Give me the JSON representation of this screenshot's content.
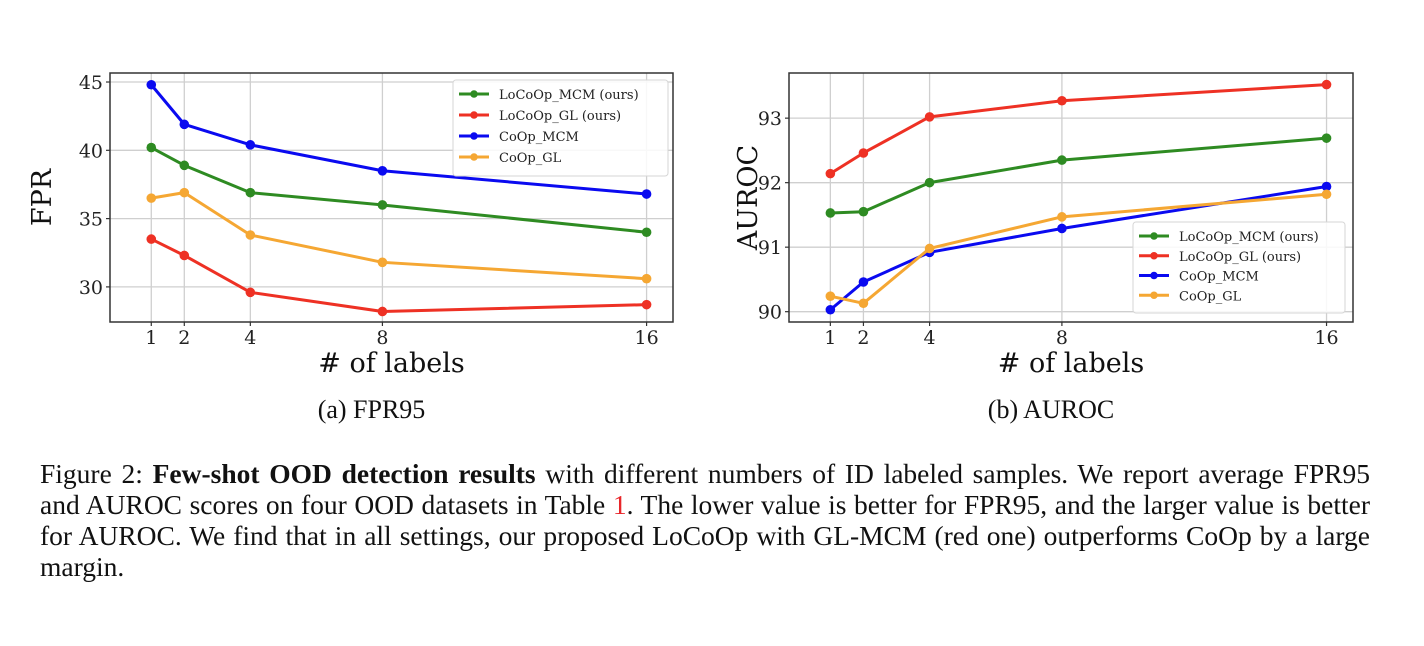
{
  "chart_data": [
    {
      "type": "line",
      "subcaption": "(a) FPR95",
      "xlabel": "# of labels",
      "ylabel": "FPR",
      "x": [
        1,
        2,
        4,
        8,
        16
      ],
      "xticks": [
        1,
        2,
        4,
        8,
        16
      ],
      "yticks": [
        30,
        35,
        40,
        45
      ],
      "xlim": [
        -0.25,
        16.8
      ],
      "ylim": [
        27.43,
        45.66
      ],
      "grid": true,
      "legend_position": "top-right",
      "series": [
        {
          "name": "LoCoOp_MCM (ours)",
          "color": "#2e8b22",
          "values": [
            40.2,
            38.9,
            36.9,
            36.0,
            34.0
          ]
        },
        {
          "name": "LoCoOp_GL (ours)",
          "color": "#ee3124",
          "values": [
            33.5,
            32.3,
            29.6,
            28.2,
            28.7
          ]
        },
        {
          "name": "CoOp_MCM",
          "color": "#0a0af0",
          "values": [
            44.8,
            41.9,
            40.4,
            38.5,
            36.8
          ]
        },
        {
          "name": "CoOp_GL",
          "color": "#f5a733",
          "values": [
            36.5,
            36.9,
            33.8,
            31.8,
            30.6
          ]
        }
      ]
    },
    {
      "type": "line",
      "subcaption": "(b) AUROC",
      "xlabel": "# of labels",
      "ylabel": "AUROC",
      "x": [
        1,
        2,
        4,
        8,
        16
      ],
      "xticks": [
        1,
        2,
        4,
        8,
        16
      ],
      "yticks": [
        90,
        91,
        92,
        93
      ],
      "xlim": [
        -0.25,
        16.8
      ],
      "ylim": [
        89.84,
        93.7
      ],
      "grid": true,
      "legend_position": "lower-right",
      "series": [
        {
          "name": "LoCoOp_MCM (ours)",
          "color": "#2e8b22",
          "values": [
            91.53,
            91.55,
            92.0,
            92.35,
            92.69
          ]
        },
        {
          "name": "LoCoOp_GL (ours)",
          "color": "#ee3124",
          "values": [
            92.14,
            92.46,
            93.02,
            93.27,
            93.52
          ]
        },
        {
          "name": "CoOp_MCM",
          "color": "#0a0af0",
          "values": [
            90.03,
            90.46,
            90.92,
            91.29,
            91.94
          ]
        },
        {
          "name": "CoOp_GL",
          "color": "#f5a733",
          "values": [
            90.24,
            90.13,
            90.98,
            91.47,
            91.82
          ]
        }
      ]
    }
  ],
  "caption": {
    "label": "Figure 2:",
    "bold": "Few-shot OOD detection results",
    "text1": " with different numbers of ID labeled samples. We report average FPR95 and AUROC scores on four OOD datasets in Table ",
    "ref": "1",
    "text2": ". The lower value is better for FPR95, and the larger value is better for AUROC. We find that in all settings, our proposed LoCoOp with GL-MCM (red one) outperforms CoOp by a large margin."
  }
}
